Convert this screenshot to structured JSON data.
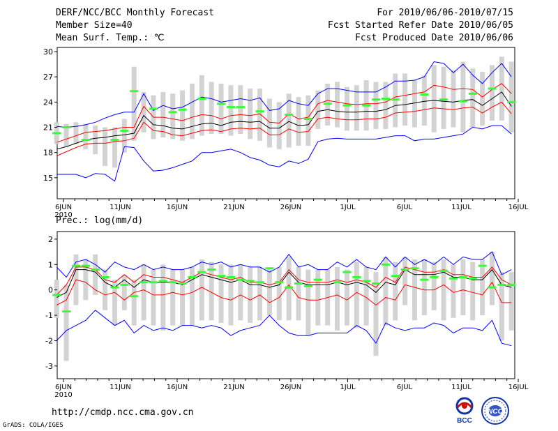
{
  "header": {
    "title": "DERF/NCC/BCC Monthly Forecast",
    "member_size": "Member Size=40",
    "variable": "Mean Surf. Temp.: ℃",
    "period": "For 2010/06/06-2010/07/15",
    "start_date": "Fcst Started Refer Date 2010/06/05",
    "produced_date": "Fcst Produced Date 2010/06/06"
  },
  "footer": {
    "url": "http://cmdp.ncc.cma.gov.cn",
    "grads": "GrADS: COLA/IGES"
  },
  "logos": {
    "bcc": "BCC",
    "ncc": "NCC"
  },
  "colors": {
    "max_min": "#0000ff",
    "spread": "#ff0000",
    "mean": "#000000",
    "obs": "#33ff33",
    "box": "#d3d3d3"
  },
  "chart_data": [
    {
      "type": "line",
      "title": "Mean Surf. Temp.: ℃",
      "x_tick_labels": [
        "6JUN",
        "11JUN",
        "16JUN",
        "21JUN",
        "26JUN",
        "1JUL",
        "6JUL",
        "11JUL",
        "16JUL"
      ],
      "x_tick_days": [
        0,
        5,
        10,
        15,
        20,
        25,
        30,
        35,
        40
      ],
      "year_label": "2010",
      "ylim": [
        12.5,
        30.5
      ],
      "y_ticks": [
        15,
        18,
        21,
        24,
        27,
        30
      ],
      "series": [
        {
          "name": "max",
          "color": "#0000ff",
          "values": [
            21.1,
            21.0,
            21.1,
            21.3,
            21.6,
            22.1,
            22.5,
            22.8,
            22.8,
            25.0,
            23.0,
            23.6,
            23.2,
            23.4,
            24.0,
            24.6,
            24.4,
            24.0,
            24.2,
            24.4,
            24.2,
            24.5,
            23.0,
            23.2,
            24.2,
            23.8,
            23.6,
            25.0,
            25.6,
            25.6,
            25.4,
            25.2,
            25.2,
            25.2,
            25.8,
            26.5,
            26.5,
            26.6,
            27.0,
            28.8,
            28.6,
            27.5,
            28.5,
            27.2,
            26.2,
            27.5,
            28.6,
            27.0
          ]
        },
        {
          "name": "spread_upper",
          "color": "#ff0000",
          "values": [
            19.2,
            19.6,
            20.0,
            20.4,
            20.5,
            20.6,
            20.8,
            21.0,
            21.0,
            23.5,
            22.2,
            22.2,
            22.0,
            21.8,
            22.2,
            22.5,
            22.4,
            22.0,
            22.4,
            22.5,
            22.4,
            22.6,
            21.6,
            21.5,
            22.6,
            22.0,
            22.2,
            23.8,
            24.2,
            24.0,
            23.8,
            23.7,
            23.8,
            23.8,
            24.0,
            24.6,
            24.8,
            25.0,
            25.2,
            26.0,
            25.8,
            25.5,
            25.6,
            25.5,
            24.6,
            25.5,
            26.2,
            25.0
          ]
        },
        {
          "name": "mean",
          "color": "#000000",
          "values": [
            18.4,
            18.7,
            19.1,
            19.5,
            19.7,
            19.8,
            20.0,
            20.1,
            20.3,
            22.4,
            21.3,
            21.2,
            20.9,
            20.8,
            21.1,
            21.4,
            21.5,
            21.2,
            21.6,
            21.7,
            21.6,
            21.7,
            20.9,
            20.9,
            21.7,
            21.2,
            21.3,
            22.9,
            23.1,
            22.9,
            22.8,
            22.8,
            22.9,
            22.9,
            23.1,
            23.6,
            23.7,
            23.9,
            24.1,
            24.2,
            24.1,
            24.0,
            24.2,
            24.3,
            23.6,
            24.4,
            25.2,
            23.5
          ]
        },
        {
          "name": "spread_lower",
          "color": "#ff0000",
          "values": [
            17.6,
            18.1,
            18.6,
            19.0,
            19.1,
            19.1,
            19.3,
            19.4,
            19.7,
            21.6,
            20.6,
            20.5,
            20.1,
            20.0,
            20.3,
            20.6,
            20.7,
            20.5,
            20.8,
            20.9,
            20.8,
            20.9,
            20.1,
            20.1,
            20.8,
            20.4,
            20.5,
            22.0,
            22.2,
            22.0,
            21.9,
            21.9,
            22.0,
            22.0,
            22.2,
            22.7,
            22.8,
            22.9,
            23.1,
            23.3,
            23.2,
            23.1,
            23.3,
            23.4,
            22.7,
            23.4,
            24.0,
            22.6
          ]
        },
        {
          "name": "min",
          "color": "#0000ff",
          "values": [
            15.4,
            15.4,
            15.4,
            15.0,
            15.5,
            15.4,
            14.6,
            18.7,
            18.6,
            17.0,
            15.8,
            15.9,
            16.2,
            16.6,
            17.0,
            18.0,
            18.0,
            18.2,
            18.4,
            18.0,
            17.4,
            17.1,
            16.5,
            16.3,
            17.0,
            16.7,
            17.2,
            19.3,
            19.6,
            19.7,
            19.6,
            19.6,
            19.6,
            19.6,
            19.8,
            20.0,
            20.0,
            19.4,
            19.6,
            19.6,
            19.8,
            20.0,
            20.2,
            21.0,
            20.8,
            21.2,
            21.2,
            20.2
          ]
        }
      ],
      "obs": [
        20.3,
        21.0,
        null,
        19.5,
        null,
        null,
        19.5,
        20.6,
        25.3,
        null,
        23.2,
        null,
        22.8,
        23.1,
        null,
        24.4,
        null,
        23.8,
        23.4,
        23.4,
        null,
        22.9,
        null,
        null,
        22.5,
        null,
        22.0,
        null,
        23.8,
        null,
        23.6,
        null,
        23.6,
        24.3,
        24.4,
        24.3,
        null,
        null,
        24.9,
        null,
        24.3,
        null,
        24.1,
        25.0,
        null,
        25.6,
        null,
        24.0
      ],
      "boxes": [
        [
          19.0,
          21.6
        ],
        [
          18.6,
          21.4
        ],
        [
          19.0,
          21.6
        ],
        [
          18.4,
          21.4
        ],
        [
          17.8,
          21.2
        ],
        [
          16.4,
          21.0
        ],
        [
          16.2,
          21.0
        ],
        [
          18.0,
          22.0
        ],
        [
          19.4,
          28.2
        ],
        [
          20.4,
          25.2
        ],
        [
          19.6,
          24.8
        ],
        [
          19.8,
          25.2
        ],
        [
          19.6,
          25.0
        ],
        [
          19.4,
          25.4
        ],
        [
          19.6,
          26.2
        ],
        [
          20.0,
          27.2
        ],
        [
          20.2,
          26.4
        ],
        [
          20.2,
          26.2
        ],
        [
          20.0,
          26.0
        ],
        [
          20.2,
          26.0
        ],
        [
          19.6,
          25.6
        ],
        [
          19.4,
          25.6
        ],
        [
          18.6,
          24.4
        ],
        [
          18.4,
          24.0
        ],
        [
          18.6,
          25.0
        ],
        [
          18.8,
          24.6
        ],
        [
          18.8,
          24.8
        ],
        [
          20.8,
          25.4
        ],
        [
          21.2,
          26.2
        ],
        [
          21.0,
          26.4
        ],
        [
          20.6,
          25.8
        ],
        [
          20.6,
          26.0
        ],
        [
          20.6,
          26.6
        ],
        [
          20.8,
          26.4
        ],
        [
          20.8,
          26.4
        ],
        [
          21.0,
          27.4
        ],
        [
          21.2,
          27.4
        ],
        [
          21.0,
          26.6
        ],
        [
          21.2,
          27.2
        ],
        [
          20.4,
          28.4
        ],
        [
          20.8,
          28.2
        ],
        [
          21.0,
          27.8
        ],
        [
          20.4,
          28.8
        ],
        [
          21.0,
          28.0
        ],
        [
          21.2,
          27.6
        ],
        [
          21.8,
          28.4
        ],
        [
          21.8,
          29.4
        ],
        [
          20.4,
          28.8
        ]
      ]
    },
    {
      "type": "line",
      "title": "Prec.: log(mm/d)",
      "x_tick_labels": [
        "6JUN",
        "11JUN",
        "16JUN",
        "21JUN",
        "26JUN",
        "1JUL",
        "6JUL",
        "11JUL",
        "16JUL"
      ],
      "x_tick_days": [
        0,
        5,
        10,
        15,
        20,
        25,
        30,
        35,
        40
      ],
      "year_label": "2010",
      "ylim": [
        -3.5,
        2.3
      ],
      "y_ticks": [
        -3,
        -2,
        -1,
        0,
        1,
        2
      ],
      "series": [
        {
          "name": "max",
          "color": "#0000ff",
          "values": [
            0.9,
            0.5,
            1.1,
            1.2,
            1.0,
            0.7,
            1.1,
            0.9,
            0.8,
            1.0,
            0.8,
            0.9,
            0.8,
            0.8,
            0.9,
            1.1,
            1.0,
            1.1,
            0.9,
            1.0,
            0.9,
            0.9,
            0.7,
            0.9,
            1.4,
            0.9,
            1.0,
            0.8,
            0.8,
            1.1,
            0.9,
            1.2,
            0.9,
            0.8,
            1.3,
            0.9,
            1.3,
            1.0,
            1.2,
            1.0,
            1.3,
            1.0,
            1.3,
            1.2,
            1.2,
            1.5,
            0.6,
            0.8
          ]
        },
        {
          "name": "spread_upper",
          "color": "#ff0000",
          "values": [
            -0.2,
            0.2,
            0.9,
            0.9,
            0.8,
            0.4,
            0.3,
            0.6,
            0.3,
            0.6,
            0.5,
            0.5,
            0.4,
            0.3,
            0.5,
            0.7,
            0.6,
            0.5,
            0.4,
            0.5,
            0.3,
            0.3,
            0.2,
            0.3,
            0.8,
            0.4,
            0.3,
            0.3,
            0.3,
            0.4,
            0.3,
            0.4,
            0.3,
            0.1,
            0.5,
            0.3,
            0.9,
            0.8,
            0.7,
            0.7,
            0.8,
            0.6,
            0.6,
            0.5,
            0.5,
            0.9,
            0.4,
            0.2
          ]
        },
        {
          "name": "mean",
          "color": "#000000",
          "values": [
            -0.3,
            -0.1,
            0.8,
            0.8,
            0.7,
            0.3,
            0.1,
            0.4,
            0.1,
            0.4,
            0.3,
            0.3,
            0.3,
            0.2,
            0.4,
            0.6,
            0.5,
            0.4,
            0.3,
            0.4,
            0.2,
            0.2,
            0.1,
            0.2,
            0.7,
            0.3,
            0.2,
            0.2,
            0.2,
            0.3,
            0.2,
            0.3,
            0.2,
            -0.1,
            0.3,
            0.2,
            0.8,
            0.6,
            0.6,
            0.6,
            0.7,
            0.5,
            0.5,
            0.4,
            0.4,
            0.8,
            0.2,
            0.1
          ]
        },
        {
          "name": "spread_lower",
          "color": "#ff0000",
          "values": [
            -0.6,
            -0.4,
            0.4,
            0.3,
            0.0,
            -0.2,
            -0.1,
            -0.4,
            -0.1,
            0.0,
            -0.2,
            -0.2,
            -0.1,
            -0.2,
            -0.1,
            0.1,
            -0.1,
            -0.3,
            -0.4,
            -0.2,
            -0.4,
            -0.2,
            -0.5,
            -0.3,
            0.2,
            -0.3,
            -0.4,
            -0.4,
            -0.3,
            -0.2,
            -0.4,
            -0.1,
            -0.3,
            -0.6,
            -0.3,
            -0.4,
            0.2,
            0.1,
            0.0,
            0.0,
            0.2,
            -0.1,
            0.0,
            -0.1,
            -0.2,
            0.3,
            -0.5,
            -0.5
          ]
        },
        {
          "name": "min",
          "color": "#0000ff",
          "values": [
            -2.0,
            -1.6,
            -1.4,
            -1.2,
            -0.8,
            -1.1,
            -1.4,
            -1.2,
            -1.7,
            -1.4,
            -1.6,
            -1.5,
            -1.6,
            -1.4,
            -1.4,
            -1.5,
            -1.4,
            -1.5,
            -1.8,
            -1.6,
            -1.5,
            -1.4,
            -1.0,
            -1.4,
            -1.7,
            -1.8,
            -1.8,
            -1.7,
            -1.7,
            -1.7,
            -1.7,
            -1.4,
            -1.6,
            -2.1,
            -1.3,
            -1.5,
            -1.6,
            -1.5,
            -1.5,
            -1.3,
            -1.4,
            -1.7,
            -1.5,
            -1.5,
            -1.6,
            -1.2,
            -2.1,
            -2.2
          ]
        },
        {
          "name": "obs",
          "color": "#33ff33",
          "values": []
        }
      ],
      "obs": [
        -0.2,
        -0.85,
        0.95,
        0.95,
        0.8,
        0.5,
        0.1,
        0.2,
        -0.25,
        0.3,
        0.3,
        0.35,
        0.3,
        0.25,
        0.5,
        0.7,
        0.8,
        0.55,
        0.5,
        0.4,
        0.35,
        0.3,
        0.85,
        0.3,
        0.1,
        0.25,
        0.15,
        0.4,
        null,
        0.3,
        0.7,
        0.5,
        0.35,
        0.25,
        1.0,
        0.55,
        0.8,
        0.85,
        0.4,
        0.5,
        0.75,
        0.45,
        0.5,
        0.45,
        0.95,
        0.1,
        0.2,
        0.2
      ],
      "boxes": [
        [
          -1.1,
          0.4
        ],
        [
          -2.8,
          0.2
        ],
        [
          -0.6,
          1.4
        ],
        [
          -0.4,
          1.2
        ],
        [
          -0.2,
          1.4
        ],
        [
          -0.8,
          0.8
        ],
        [
          -1.4,
          0.4
        ],
        [
          -0.8,
          0.6
        ],
        [
          -1.4,
          0.4
        ],
        [
          -1.2,
          1.0
        ],
        [
          -1.4,
          0.8
        ],
        [
          -1.6,
          1.0
        ],
        [
          -1.4,
          0.8
        ],
        [
          -1.4,
          0.8
        ],
        [
          -1.4,
          0.9
        ],
        [
          -1.2,
          1.2
        ],
        [
          -1.2,
          1.1
        ],
        [
          -1.3,
          1.0
        ],
        [
          -1.4,
          1.0
        ],
        [
          -1.2,
          1.0
        ],
        [
          -1.3,
          0.9
        ],
        [
          -1.2,
          0.9
        ],
        [
          -1.0,
          0.8
        ],
        [
          -1.2,
          0.9
        ],
        [
          -1.2,
          1.3
        ],
        [
          -1.2,
          0.9
        ],
        [
          -1.8,
          0.8
        ],
        [
          -1.4,
          0.8
        ],
        [
          -1.4,
          0.8
        ],
        [
          -1.6,
          0.9
        ],
        [
          -1.4,
          0.8
        ],
        [
          -1.5,
          1.1
        ],
        [
          -1.4,
          0.9
        ],
        [
          -2.6,
          0.7
        ],
        [
          -1.4,
          1.3
        ],
        [
          -1.2,
          1.1
        ],
        [
          -0.6,
          1.3
        ],
        [
          -1.2,
          1.2
        ],
        [
          -1.0,
          1.2
        ],
        [
          -0.8,
          1.1
        ],
        [
          -1.2,
          1.2
        ],
        [
          -1.1,
          1.0
        ],
        [
          -1.0,
          1.2
        ],
        [
          -1.2,
          1.1
        ],
        [
          -1.0,
          1.2
        ],
        [
          -0.6,
          1.5
        ],
        [
          -2.0,
          0.7
        ],
        [
          -1.6,
          0.7
        ]
      ]
    }
  ]
}
